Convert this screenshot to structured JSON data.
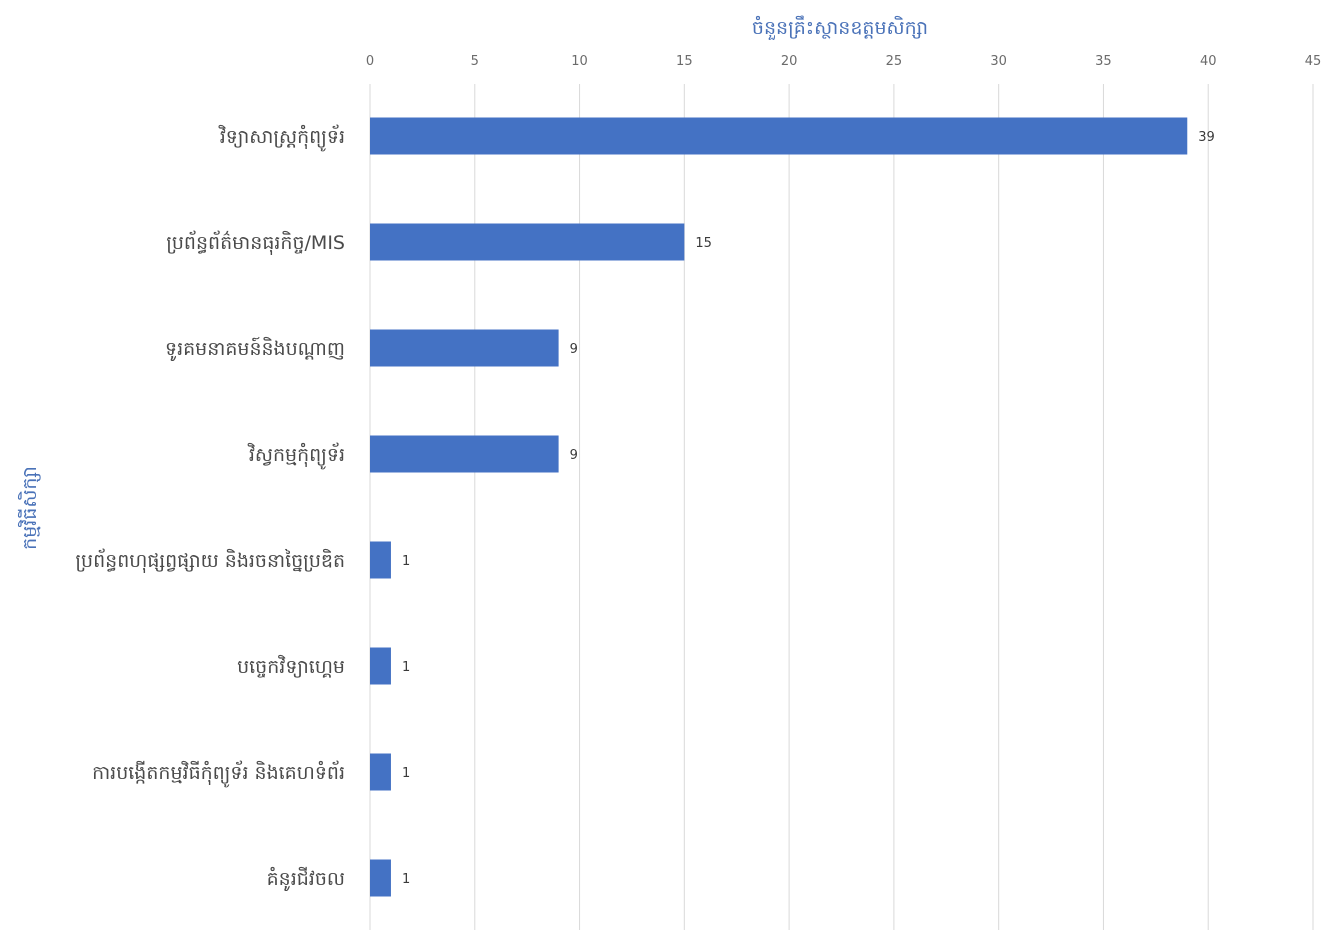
{
  "chart_data": {
    "type": "bar",
    "orientation": "horizontal",
    "title": "",
    "xlabel": "ចំនួនគ្រឹះស្ថានឧត្តមសិក្សា",
    "ylabel": "កម្មវិធីសិក្សា",
    "x_axis_position": "top",
    "xlim": [
      0,
      45
    ],
    "xticks": [
      0,
      5,
      10,
      15,
      20,
      25,
      30,
      35,
      40,
      45
    ],
    "grid": true,
    "legend": "none",
    "bar_color": "#4472c4",
    "axis_title_color": "#4a72b8",
    "categories": [
      "វិទ្យាសាស្ត្រកុំព្យូទ័រ",
      "ប្រព័ន្ធព័ត៌មានធុរកិច្ច/MIS",
      "ទូរគមនាគមន៍និងបណ្តាញ",
      "វិស្វកម្មកុំព្យូទ័រ",
      "ប្រព័ន្ធពហុផ្សព្វផ្សាយ និងរចនាច្នៃប្រឌិត",
      "បច្ចេកវិទ្យាហ្គេម",
      "ការបង្កើតកម្មវិធីកុំព្យូទ័រ និងគេហទំព័រ",
      "គំនូរជីវចល"
    ],
    "values": [
      39,
      15,
      9,
      9,
      1,
      1,
      1,
      1
    ]
  }
}
